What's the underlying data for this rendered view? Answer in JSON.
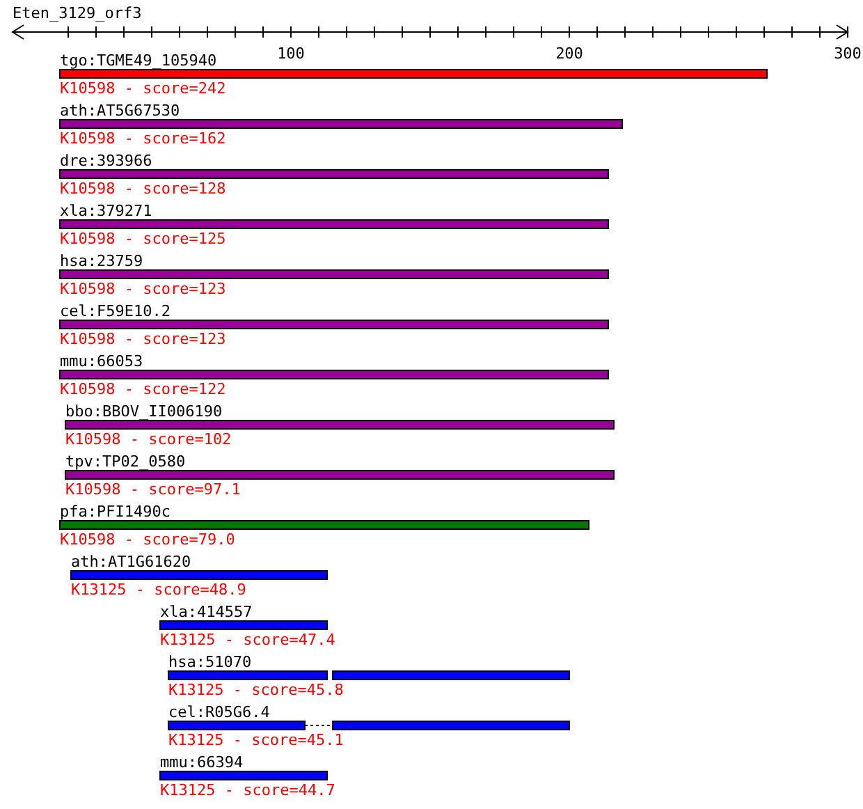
{
  "chart_data": {
    "type": "bar",
    "orientation": "horizontal",
    "title": "Eten_3129_orf3",
    "categories": [
      "tgo:TGME49_105940",
      "ath:AT5G67530",
      "dre:393966",
      "xla:379271",
      "hsa:23759",
      "cel:F59E10.2",
      "mmu:66053",
      "bbo:BBOV_II006190",
      "tpv:TP02_0580",
      "pfa:PFI1490c",
      "ath:AT1G61620",
      "xla:414557",
      "hsa:51070",
      "cel:R05G6.4",
      "mmu:66394"
    ],
    "series": [
      {
        "values": [
          254,
          202,
          197,
          197,
          197,
          197,
          197,
          197,
          197,
          190,
          92,
          60,
          57,
          49,
          60
        ],
        "base": [
          17,
          17,
          17,
          17,
          17,
          17,
          17,
          19,
          19,
          17,
          21,
          53,
          56,
          56,
          53
        ],
        "colors": [
          "#ff0000",
          "#990099",
          "#990099",
          "#990099",
          "#990099",
          "#990099",
          "#990099",
          "#990099",
          "#990099",
          "#007700",
          "#0000ff",
          "#0000ff",
          "#0000ff",
          "#0000ff",
          "#0000ff"
        ]
      },
      {
        "values": [
          null,
          null,
          null,
          null,
          null,
          null,
          null,
          null,
          null,
          null,
          null,
          null,
          85,
          85,
          null
        ],
        "base": [
          null,
          null,
          null,
          null,
          null,
          null,
          null,
          null,
          null,
          null,
          null,
          null,
          115,
          115,
          null
        ],
        "color": "#0000ff"
      }
    ],
    "xlim": [
      0,
      300
    ],
    "xticks": [
      {
        "value": 20,
        "label": null
      },
      {
        "value": 30,
        "label": null
      },
      {
        "value": 40,
        "label": null
      },
      {
        "value": 50,
        "label": null
      },
      {
        "value": 60,
        "label": null
      },
      {
        "value": 70,
        "label": null
      },
      {
        "value": 80,
        "label": null
      },
      {
        "value": 90,
        "label": null
      },
      100,
      {
        "value": 110,
        "label": null
      },
      {
        "value": 120,
        "label": null
      },
      {
        "value": 130,
        "label": null
      },
      {
        "value": 140,
        "label": null
      },
      {
        "value": 150,
        "label": null
      },
      {
        "value": 160,
        "label": null
      },
      {
        "value": 170,
        "label": null
      },
      {
        "value": 180,
        "label": null
      },
      {
        "value": 190,
        "label": null
      },
      200,
      {
        "value": 210,
        "label": null
      },
      {
        "value": 220,
        "label": null
      },
      {
        "value": 230,
        "label": null
      },
      {
        "value": 240,
        "label": null
      },
      {
        "value": 250,
        "label": null
      },
      {
        "value": 260,
        "label": null
      },
      {
        "value": 270,
        "label": null
      },
      {
        "value": 280,
        "label": null
      },
      {
        "value": 290,
        "label": null
      },
      300
    ],
    "annotations": [
      "K10598 - score=242",
      "K10598 - score=162",
      "K10598 - score=128",
      "K10598 - score=125",
      "K10598 - score=123",
      "K10598 - score=123",
      "K10598 - score=122",
      "K10598 - score=102",
      "K10598 - score=97.1",
      "K10598 - score=79.0",
      "K13125 - score=48.9",
      "K13125 - score=47.4",
      "K13125 - score=45.8",
      "K13125 - score=45.1",
      "K13125 - score=44.7"
    ]
  }
}
